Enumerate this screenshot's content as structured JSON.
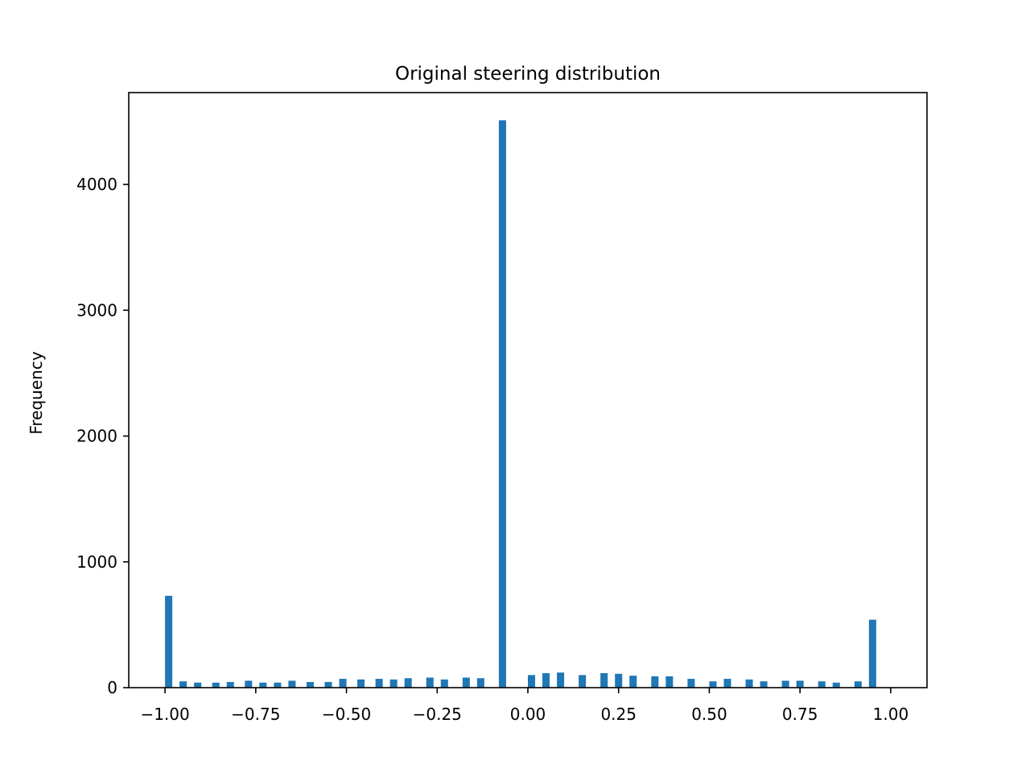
{
  "chart_data": {
    "type": "bar",
    "title": "Original steering distribution",
    "xlabel": "",
    "ylabel": "Frequency",
    "xlim": [
      -1.1,
      1.1
    ],
    "ylim": [
      0,
      4730
    ],
    "bar_width": 0.02,
    "x_ticks": [
      -1.0,
      -0.75,
      -0.5,
      -0.25,
      0.0,
      0.25,
      0.5,
      0.75,
      1.0
    ],
    "x_tick_labels": [
      "−1.00",
      "−0.75",
      "−0.50",
      "−0.25",
      "0.00",
      "0.25",
      "0.50",
      "0.75",
      "1.00"
    ],
    "y_ticks": [
      0,
      1000,
      2000,
      3000,
      4000
    ],
    "y_tick_labels": [
      "0",
      "1000",
      "2000",
      "3000",
      "4000"
    ],
    "grid": false,
    "color": "#1f77b4",
    "x": [
      -0.99,
      -0.95,
      -0.91,
      -0.86,
      -0.82,
      -0.77,
      -0.73,
      -0.69,
      -0.65,
      -0.6,
      -0.55,
      -0.51,
      -0.46,
      -0.41,
      -0.37,
      -0.33,
      -0.27,
      -0.23,
      -0.17,
      -0.13,
      -0.07,
      0.01,
      0.05,
      0.09,
      0.15,
      0.21,
      0.25,
      0.29,
      0.35,
      0.39,
      0.45,
      0.51,
      0.55,
      0.61,
      0.65,
      0.71,
      0.75,
      0.81,
      0.85,
      0.91,
      0.95,
      0.99
    ],
    "values": [
      730,
      50,
      40,
      40,
      45,
      55,
      40,
      40,
      55,
      45,
      45,
      70,
      65,
      70,
      65,
      75,
      80,
      65,
      80,
      75,
      4510,
      100,
      115,
      120,
      100,
      115,
      110,
      95,
      90,
      90,
      70,
      50,
      70,
      65,
      50,
      55,
      55,
      50,
      40,
      50,
      540,
      0
    ]
  }
}
